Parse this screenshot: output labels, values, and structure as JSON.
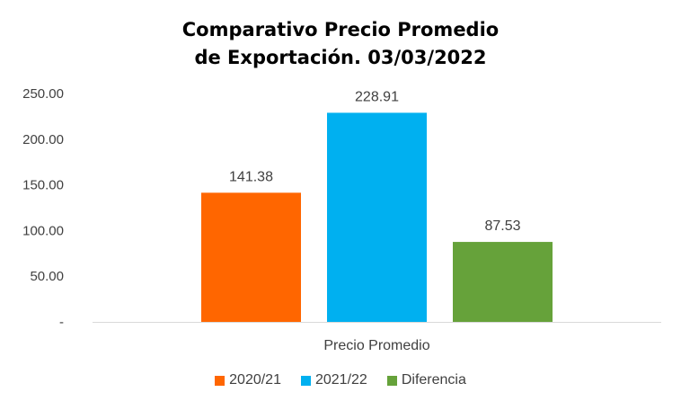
{
  "chart_data": {
    "type": "bar",
    "title_lines": [
      "Comparativo Precio Promedio",
      "de Exportación. 03/03/2022"
    ],
    "categories": [
      "Precio Promedio"
    ],
    "series": [
      {
        "name": "2020/21",
        "values": [
          141.38
        ],
        "label": "141.38",
        "color": "#FF6600"
      },
      {
        "name": "2021/22",
        "values": [
          228.91
        ],
        "label": "228.91",
        "color": "#00B0F0"
      },
      {
        "name": "Diferencia",
        "values": [
          87.53
        ],
        "label": "87.53",
        "color": "#66A23A"
      }
    ],
    "ylim": [
      0,
      250
    ],
    "yticks": [
      {
        "value": 0,
        "label": "-"
      },
      {
        "value": 50,
        "label": "50.00"
      },
      {
        "value": 100,
        "label": "100.00"
      },
      {
        "value": 150,
        "label": "150.00"
      },
      {
        "value": 200,
        "label": "200.00"
      },
      {
        "value": 250,
        "label": "250.00"
      }
    ],
    "grid": false,
    "legend_position": "bottom"
  }
}
